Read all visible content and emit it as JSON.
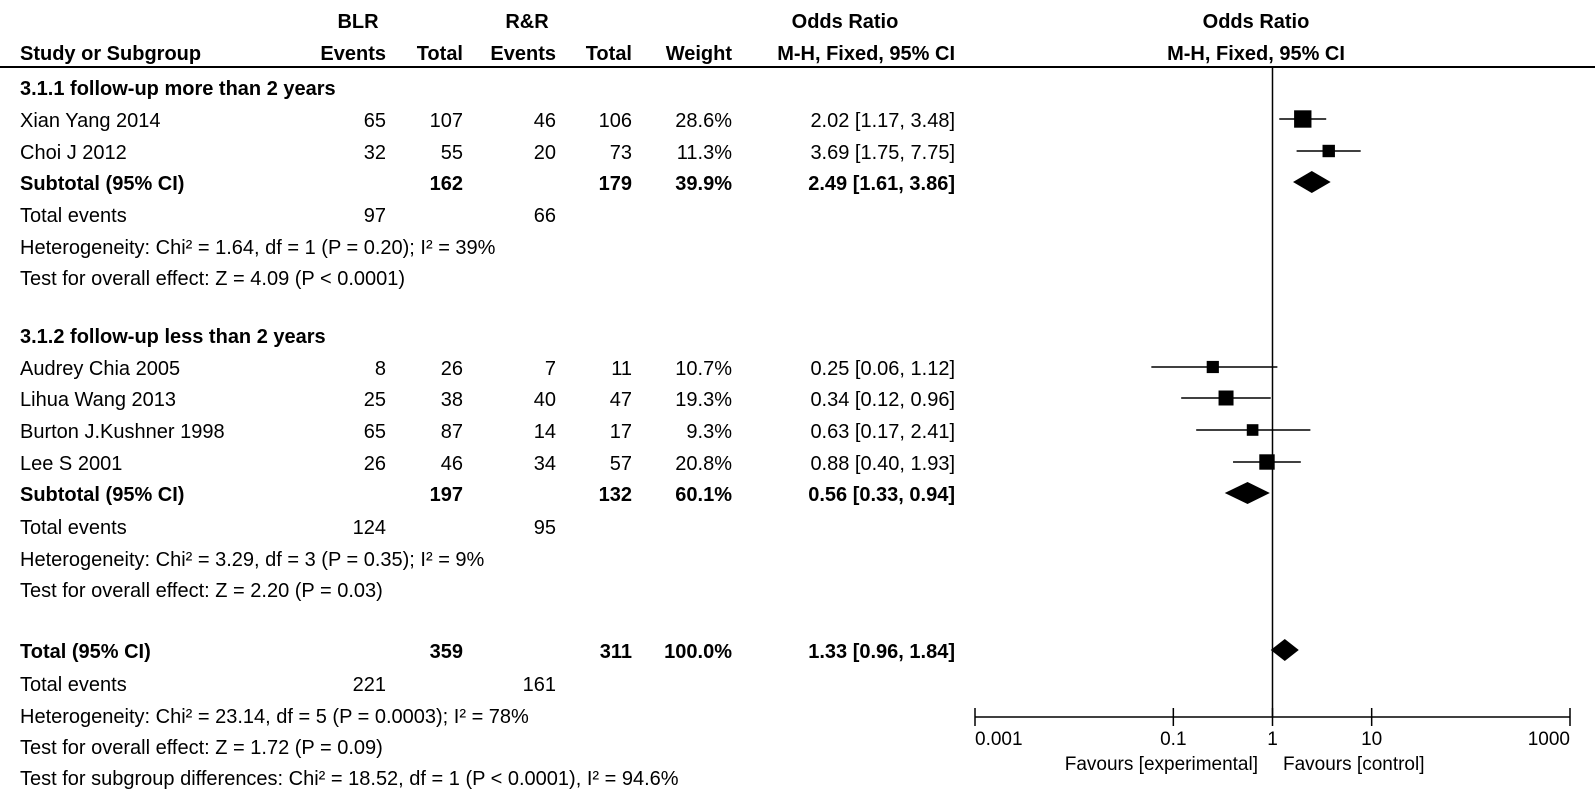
{
  "headers": {
    "group_left": "BLR",
    "group_right": "R&R",
    "or_table_title": "Odds Ratio",
    "or_table_sub": "M-H, Fixed, 95% CI",
    "or_plot_title": "Odds Ratio",
    "or_plot_sub": "M-H, Fixed, 95% CI",
    "columns": {
      "study": "Study or Subgroup",
      "events_left": "Events",
      "total_left": "Total",
      "events_right": "Events",
      "total_right": "Total",
      "weight": "Weight"
    }
  },
  "subgroups": [
    {
      "title": "3.1.1 follow-up more than 2 years",
      "studies": [
        {
          "name": "Xian Yang  2014",
          "ev1": "65",
          "t1": "107",
          "ev2": "46",
          "t2": "106",
          "weight": "28.6%",
          "ci": "2.02 [1.17, 3.48]"
        },
        {
          "name": "Choi J 2012",
          "ev1": "32",
          "t1": "55",
          "ev2": "20",
          "t2": "73",
          "weight": "11.3%",
          "ci": "3.69 [1.75, 7.75]"
        }
      ],
      "subtotal": {
        "label": "Subtotal (95% CI)",
        "t1": "162",
        "t2": "179",
        "weight": "39.9%",
        "ci": "2.49 [1.61, 3.86]"
      },
      "total_events": {
        "label": "Total events",
        "ev1": "97",
        "ev2": "66"
      },
      "heterogeneity": "Heterogeneity: Chi² = 1.64, df = 1 (P = 0.20); I² = 39%",
      "overall_effect": "Test for overall effect: Z = 4.09 (P < 0.0001)"
    },
    {
      "title": "3.1.2 follow-up less than 2 years",
      "studies": [
        {
          "name": "Audrey Chia 2005",
          "ev1": "8",
          "t1": "26",
          "ev2": "7",
          "t2": "11",
          "weight": "10.7%",
          "ci": "0.25 [0.06, 1.12]"
        },
        {
          "name": "Lihua Wang 2013",
          "ev1": "25",
          "t1": "38",
          "ev2": "40",
          "t2": "47",
          "weight": "19.3%",
          "ci": "0.34 [0.12, 0.96]"
        },
        {
          "name": "Burton J.Kushner 1998",
          "ev1": "65",
          "t1": "87",
          "ev2": "14",
          "t2": "17",
          "weight": "9.3%",
          "ci": "0.63 [0.17, 2.41]"
        },
        {
          "name": "Lee S 2001",
          "ev1": "26",
          "t1": "46",
          "ev2": "34",
          "t2": "57",
          "weight": "20.8%",
          "ci": "0.88 [0.40, 1.93]"
        }
      ],
      "subtotal": {
        "label": "Subtotal (95% CI)",
        "t1": "197",
        "t2": "132",
        "weight": "60.1%",
        "ci": "0.56 [0.33, 0.94]"
      },
      "total_events": {
        "label": "Total events",
        "ev1": "124",
        "ev2": "95"
      },
      "heterogeneity": "Heterogeneity: Chi² = 3.29, df = 3 (P = 0.35); I² = 9%",
      "overall_effect": "Test for overall effect: Z = 2.20 (P = 0.03)"
    }
  ],
  "overall": {
    "label": "Total (95% CI)",
    "t1": "359",
    "t2": "311",
    "weight": "100.0%",
    "ci": "1.33 [0.96, 1.84]",
    "total_events": {
      "label": "Total events",
      "ev1": "221",
      "ev2": "161"
    },
    "heterogeneity": "Heterogeneity: Chi² = 23.14, df = 5 (P = 0.0003); I² = 78%",
    "overall_effect": "Test for overall effect: Z = 1.72 (P = 0.09)",
    "subgroup_diff": "Test for subgroup differences: Chi² = 18.52, df = 1 (P < 0.0001), I² = 94.6%"
  },
  "axis": {
    "scale": "log",
    "range": [
      0.001,
      1000
    ],
    "ticks": [
      {
        "value": 0.001,
        "label": "0.001"
      },
      {
        "value": 0.1,
        "label": "0.1"
      },
      {
        "value": 1,
        "label": "1"
      },
      {
        "value": 10,
        "label": "10"
      },
      {
        "value": 1000,
        "label": "1000"
      }
    ],
    "favours_left": "Favours [experimental]",
    "favours_right": "Favours [control]"
  },
  "chart_data": {
    "type": "forest",
    "x_scale": "log",
    "xlim": [
      0.001,
      1000
    ],
    "reference_line": 1,
    "studies": [
      {
        "name": "Xian Yang  2014",
        "or": 2.02,
        "lo": 1.17,
        "hi": 3.48,
        "weight": 28.6
      },
      {
        "name": "Choi J 2012",
        "or": 3.69,
        "lo": 1.75,
        "hi": 7.75,
        "weight": 11.3
      },
      {
        "name": "Audrey Chia 2005",
        "or": 0.25,
        "lo": 0.06,
        "hi": 1.12,
        "weight": 10.7
      },
      {
        "name": "Lihua Wang 2013",
        "or": 0.34,
        "lo": 0.12,
        "hi": 0.96,
        "weight": 19.3
      },
      {
        "name": "Burton J.Kushner 1998",
        "or": 0.63,
        "lo": 0.17,
        "hi": 2.41,
        "weight": 9.3
      },
      {
        "name": "Lee S 2001",
        "or": 0.88,
        "lo": 0.4,
        "hi": 1.93,
        "weight": 20.8
      }
    ],
    "summaries": [
      {
        "name": "Subtotal (95% CI)",
        "or": 2.49,
        "lo": 1.61,
        "hi": 3.86
      },
      {
        "name": "Subtotal (95% CI)",
        "or": 0.56,
        "lo": 0.33,
        "hi": 0.94
      },
      {
        "name": "Total (95% CI)",
        "or": 1.33,
        "lo": 0.96,
        "hi": 1.84
      }
    ]
  }
}
